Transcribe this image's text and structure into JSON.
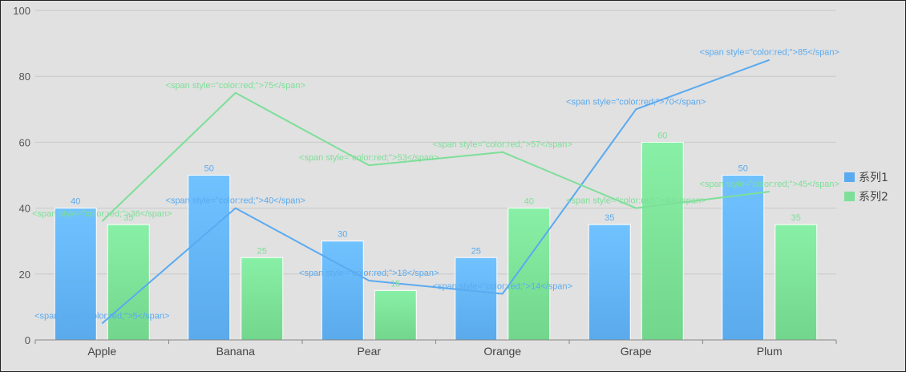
{
  "colors": {
    "series1": "#5aaaf0",
    "series2": "#7ddf98",
    "grid": "#c8c8c8",
    "axis": "#888888"
  },
  "chart_data": {
    "type": "bar",
    "categories": [
      "Apple",
      "Banana",
      "Pear",
      "Orange",
      "Grape",
      "Plum"
    ],
    "ylim": [
      0,
      100
    ],
    "yticks": [
      0,
      20,
      40,
      60,
      80,
      100
    ],
    "grid": true,
    "legend": "right",
    "bar_series": [
      {
        "name": "系列1",
        "values": [
          40,
          50,
          30,
          25,
          35,
          50
        ]
      },
      {
        "name": "系列2",
        "values": [
          35,
          25,
          15,
          40,
          60,
          35
        ]
      }
    ],
    "line_series": [
      {
        "name": "系列1",
        "values": [
          5,
          40,
          18,
          14,
          70,
          85
        ],
        "labels": [
          "<span style=\"color:red;\">5</span>",
          "<span style=\"color:red;\">40</span>",
          "<span style=\"color:red;\">18</span>",
          "<span style=\"color:red;\">14</span>",
          "<span style=\"color:red;\">70</span>",
          "<span style=\"color:red;\">85</span>"
        ]
      },
      {
        "name": "系列2",
        "values": [
          36,
          75,
          53,
          57,
          40,
          45
        ],
        "labels": [
          "<span style=\"color:red;\">36</span>",
          "<span style=\"color:red;\">75</span>",
          "<span style=\"color:red;\">53</span>",
          "<span style=\"color:red;\">57</span>",
          "<span style=\"color:red;\">40</span>",
          "<span style=\"color:red;\">45</span>"
        ]
      }
    ]
  }
}
